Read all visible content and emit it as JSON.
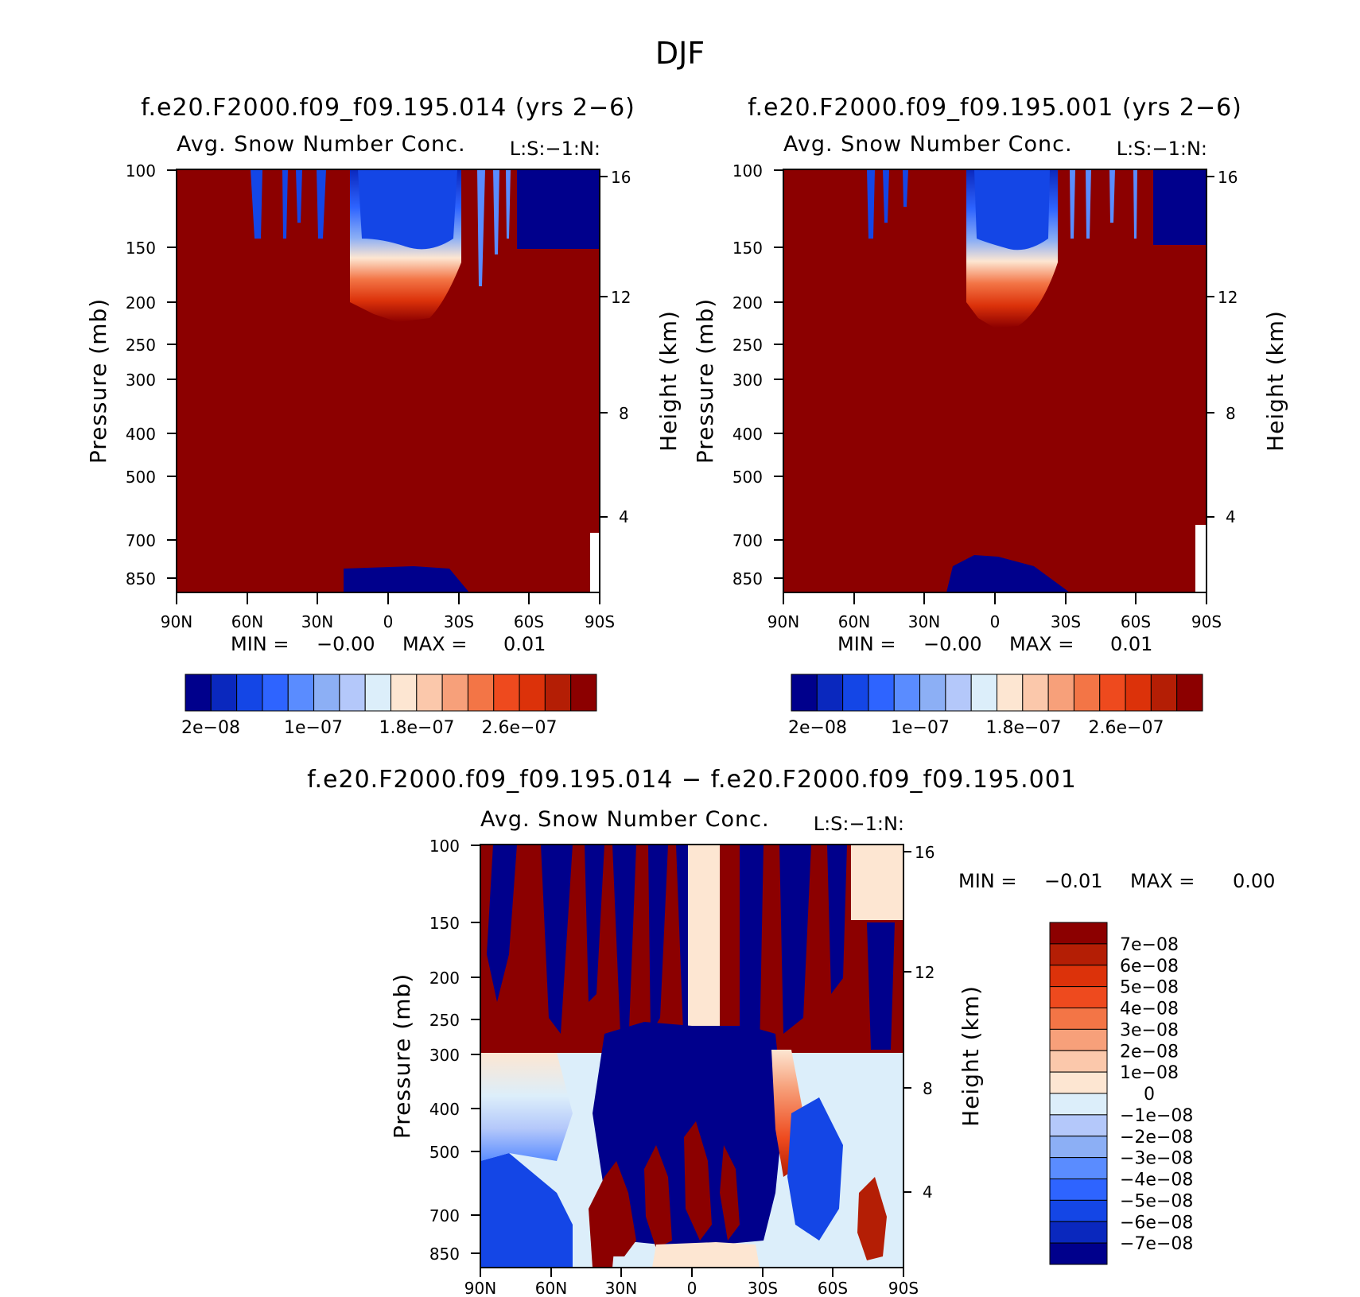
{
  "figure": {
    "title": "DJF"
  },
  "panels": [
    {
      "title": "f.e20.F2000.f09_f09.195.014 (yrs 2−6)",
      "variable": "Avg. Snow Number Conc.",
      "code": "L:S:−1:N:",
      "ylabel": "Pressure (mb)",
      "y2label": "Height (km)",
      "min_label": "MIN =",
      "min_value": "−0.00",
      "max_label": "MAX =",
      "max_value": "0.01"
    },
    {
      "title": "f.e20.F2000.f09_f09.195.001 (yrs 2−6)",
      "variable": "Avg. Snow Number Conc.",
      "code": "L:S:−1:N:",
      "ylabel": "Pressure (mb)",
      "y2label": "Height (km)",
      "min_label": "MIN =",
      "min_value": "−0.00",
      "max_label": "MAX =",
      "max_value": "0.01"
    },
    {
      "title": "f.e20.F2000.f09_f09.195.014 − f.e20.F2000.f09_f09.195.001",
      "variable": "Avg. Snow Number Conc.",
      "code": "L:S:−1:N:",
      "ylabel": "Pressure (mb)",
      "y2label": "Height (km)",
      "min_label": "MIN =",
      "min_value": "−0.01",
      "max_label": "MAX =",
      "max_value": "0.00"
    }
  ],
  "colors": {
    "abs_scale": [
      "#00008c",
      "#0a28be",
      "#1446e6",
      "#2e64ff",
      "#5a8cff",
      "#8caff5",
      "#b4c8fa",
      "#dceefa",
      "#fde6d2",
      "#fbc8ab",
      "#f7a07a",
      "#f37546",
      "#ee4a1e",
      "#dc320a",
      "#b41e05",
      "#8c0000"
    ],
    "diff_scale": [
      "#00008c",
      "#0a28be",
      "#1446e6",
      "#2e64ff",
      "#5a8cff",
      "#8caff5",
      "#b4c8fa",
      "#dceefa",
      "#fde6d2",
      "#fbc8ab",
      "#f7a07a",
      "#f37546",
      "#ee4a1e",
      "#dc320a",
      "#b41e05",
      "#8c0000"
    ]
  },
  "chart_data": [
    {
      "type": "heatmap",
      "title": "f.e20.F2000.f09_f09.195.014 (yrs 2−6)",
      "subtitle": "Avg. Snow Number Conc.",
      "x_ticks": [
        "90N",
        "60N",
        "30N",
        "0",
        "30S",
        "60S",
        "90S"
      ],
      "x_values": [
        90,
        60,
        30,
        0,
        -30,
        -60,
        -90
      ],
      "xlim": [
        90,
        -90
      ],
      "y_ticks": [
        "100",
        "150",
        "200",
        "250",
        "300",
        "400",
        "500",
        "700",
        "850"
      ],
      "y_values": [
        100,
        150,
        200,
        250,
        300,
        400,
        500,
        700,
        850
      ],
      "ylim": [
        100,
        900
      ],
      "y_scale": "log",
      "y2_ticks": [
        "16",
        "12",
        "8",
        "4"
      ],
      "y2_values": [
        16,
        12,
        8,
        4
      ],
      "ylabel": "Pressure (mb)",
      "y2label": "Height (km)",
      "colorbar_ticks": [
        "2e−08",
        "1e−07",
        "1.8e−07",
        "2.6e−07"
      ],
      "colorbar_levels": 16,
      "min": -0.0,
      "max": 0.01
    },
    {
      "type": "heatmap",
      "title": "f.e20.F2000.f09_f09.195.001 (yrs 2−6)",
      "subtitle": "Avg. Snow Number Conc.",
      "x_ticks": [
        "90N",
        "60N",
        "30N",
        "0",
        "30S",
        "60S",
        "90S"
      ],
      "x_values": [
        90,
        60,
        30,
        0,
        -30,
        -60,
        -90
      ],
      "xlim": [
        90,
        -90
      ],
      "y_ticks": [
        "100",
        "150",
        "200",
        "250",
        "300",
        "400",
        "500",
        "700",
        "850"
      ],
      "y_values": [
        100,
        150,
        200,
        250,
        300,
        400,
        500,
        700,
        850
      ],
      "ylim": [
        100,
        900
      ],
      "y_scale": "log",
      "y2_ticks": [
        "16",
        "12",
        "8",
        "4"
      ],
      "y2_values": [
        16,
        12,
        8,
        4
      ],
      "ylabel": "Pressure (mb)",
      "y2label": "Height (km)",
      "colorbar_ticks": [
        "2e−08",
        "1e−07",
        "1.8e−07",
        "2.6e−07"
      ],
      "colorbar_levels": 16,
      "min": -0.0,
      "max": 0.01
    },
    {
      "type": "heatmap",
      "title": "f.e20.F2000.f09_f09.195.014 − f.e20.F2000.f09_f09.195.001",
      "subtitle": "Avg. Snow Number Conc.",
      "x_ticks": [
        "90N",
        "60N",
        "30N",
        "0",
        "30S",
        "60S",
        "90S"
      ],
      "x_values": [
        90,
        60,
        30,
        0,
        -30,
        -60,
        -90
      ],
      "xlim": [
        90,
        -90
      ],
      "y_ticks": [
        "100",
        "150",
        "200",
        "250",
        "300",
        "400",
        "500",
        "700",
        "850"
      ],
      "y_values": [
        100,
        150,
        200,
        250,
        300,
        400,
        500,
        700,
        850
      ],
      "ylim": [
        100,
        900
      ],
      "y_scale": "log",
      "y2_ticks": [
        "16",
        "12",
        "8",
        "4"
      ],
      "y2_values": [
        16,
        12,
        8,
        4
      ],
      "ylabel": "Pressure (mb)",
      "y2label": "Height (km)",
      "colorbar_ticks": [
        "7e−08",
        "6e−08",
        "5e−08",
        "4e−08",
        "3e−08",
        "2e−08",
        "1e−08",
        "0",
        "−1e−08",
        "−2e−08",
        "−3e−08",
        "−4e−08",
        "−5e−08",
        "−6e−08",
        "−7e−08"
      ],
      "colorbar_levels": 16,
      "min": -0.01,
      "max": 0.0
    }
  ]
}
